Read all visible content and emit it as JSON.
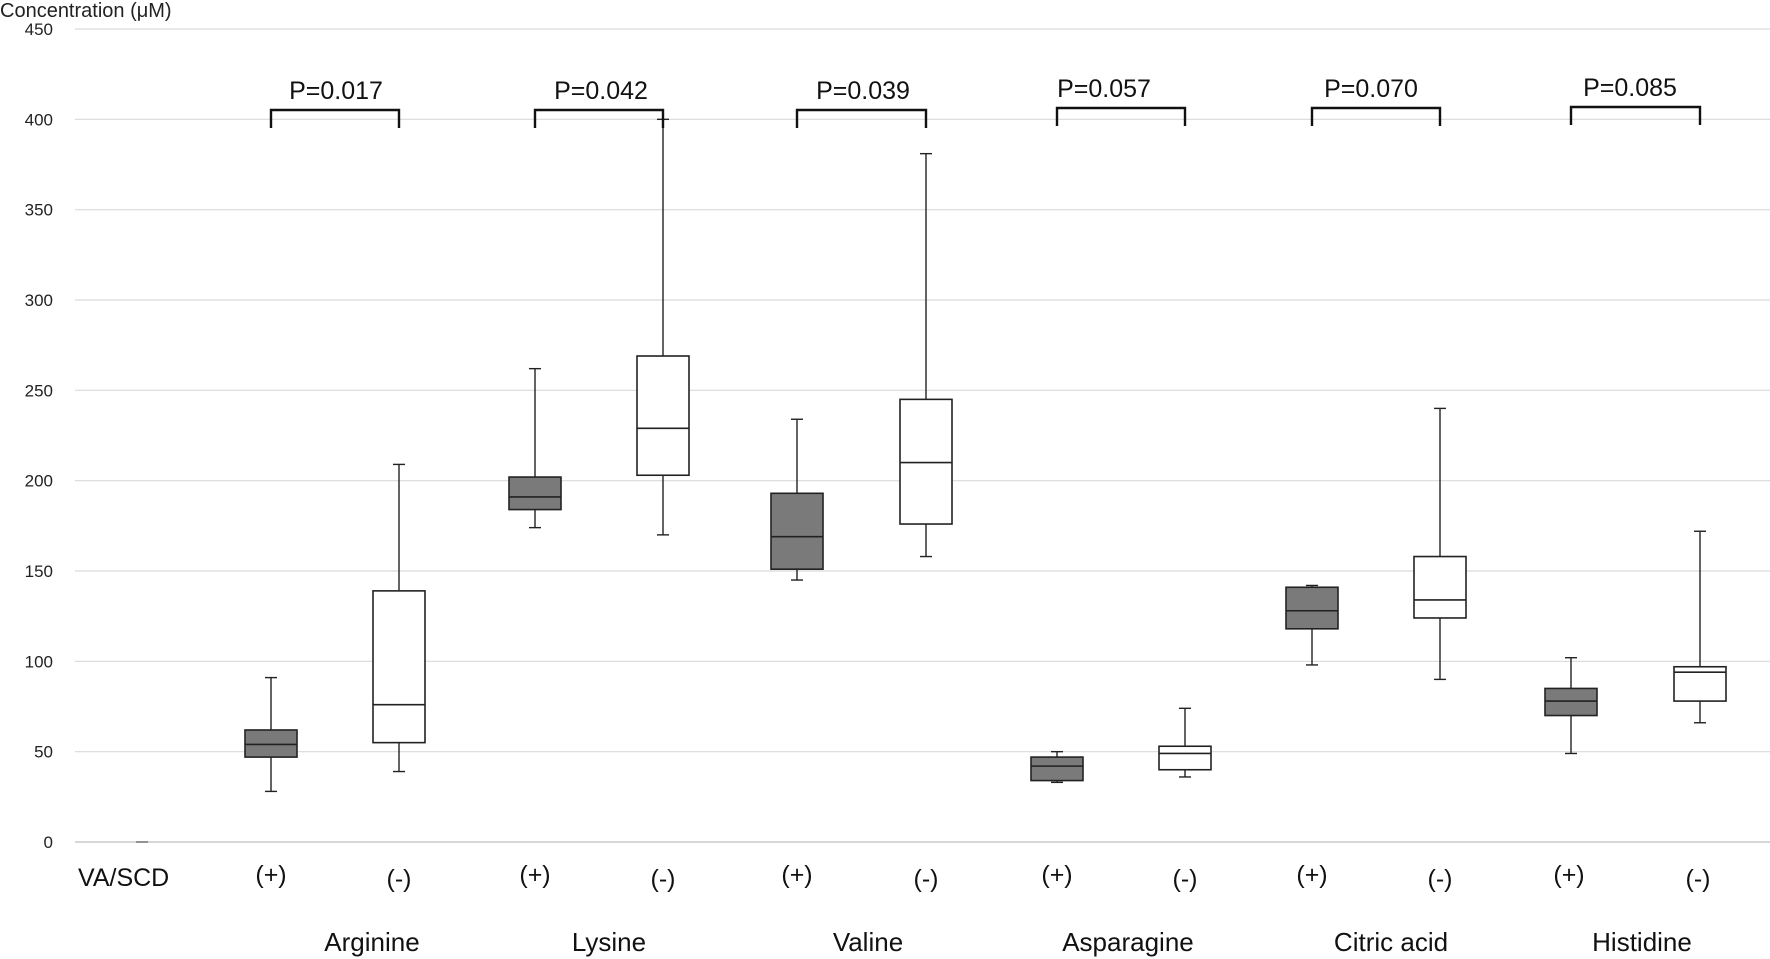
{
  "chart_data": {
    "type": "boxplot",
    "ylabel": "Concentration (μM)",
    "ylim": [
      0,
      450
    ],
    "yticks": [
      0,
      50,
      100,
      150,
      200,
      250,
      300,
      350,
      400,
      450
    ],
    "grid": true,
    "row_header": "VA/SCD",
    "category_labels": [
      "(+)",
      "(-)"
    ],
    "colors": {
      "positive": "#7a7a7a",
      "negative": "#ffffff",
      "stroke": "#222222",
      "grid": "#d9d9d9"
    },
    "groups": [
      {
        "name": "Arginine",
        "p_value": "P=0.017",
        "boxes": [
          {
            "category": "(+)",
            "min": 28,
            "q1": 47,
            "median": 54,
            "q3": 62,
            "max": 91
          },
          {
            "category": "(-)",
            "min": 39,
            "q1": 55,
            "median": 76,
            "q3": 139,
            "max": 209
          }
        ]
      },
      {
        "name": "Lysine",
        "p_value": "P=0.042",
        "boxes": [
          {
            "category": "(+)",
            "min": 174,
            "q1": 184,
            "median": 191,
            "q3": 202,
            "max": 262
          },
          {
            "category": "(-)",
            "min": 170,
            "q1": 203,
            "median": 229,
            "q3": 269,
            "max": 400
          }
        ]
      },
      {
        "name": "Valine",
        "p_value": "P=0.039",
        "boxes": [
          {
            "category": "(+)",
            "min": 145,
            "q1": 151,
            "median": 169,
            "q3": 193,
            "max": 234
          },
          {
            "category": "(-)",
            "min": 158,
            "q1": 176,
            "median": 210,
            "q3": 245,
            "max": 381
          }
        ]
      },
      {
        "name": "Asparagine",
        "p_value": "P=0.057",
        "boxes": [
          {
            "category": "(+)",
            "min": 33,
            "q1": 34,
            "median": 42,
            "q3": 47,
            "max": 50
          },
          {
            "category": "(-)",
            "min": 36,
            "q1": 40,
            "median": 49,
            "q3": 53,
            "max": 74
          }
        ]
      },
      {
        "name": "Citric acid",
        "p_value": "P=0.070",
        "boxes": [
          {
            "category": "(+)",
            "min": 98,
            "q1": 118,
            "median": 128,
            "q3": 141,
            "max": 142
          },
          {
            "category": "(-)",
            "min": 90,
            "q1": 124,
            "median": 134,
            "q3": 158,
            "max": 240
          }
        ]
      },
      {
        "name": "Histidine",
        "p_value": "P=0.085",
        "boxes": [
          {
            "category": "(+)",
            "min": 49,
            "q1": 70,
            "median": 78,
            "q3": 85,
            "max": 102
          },
          {
            "category": "(-)",
            "min": 66,
            "q1": 78,
            "median": 94,
            "q3": 97,
            "max": 172
          }
        ]
      }
    ]
  }
}
